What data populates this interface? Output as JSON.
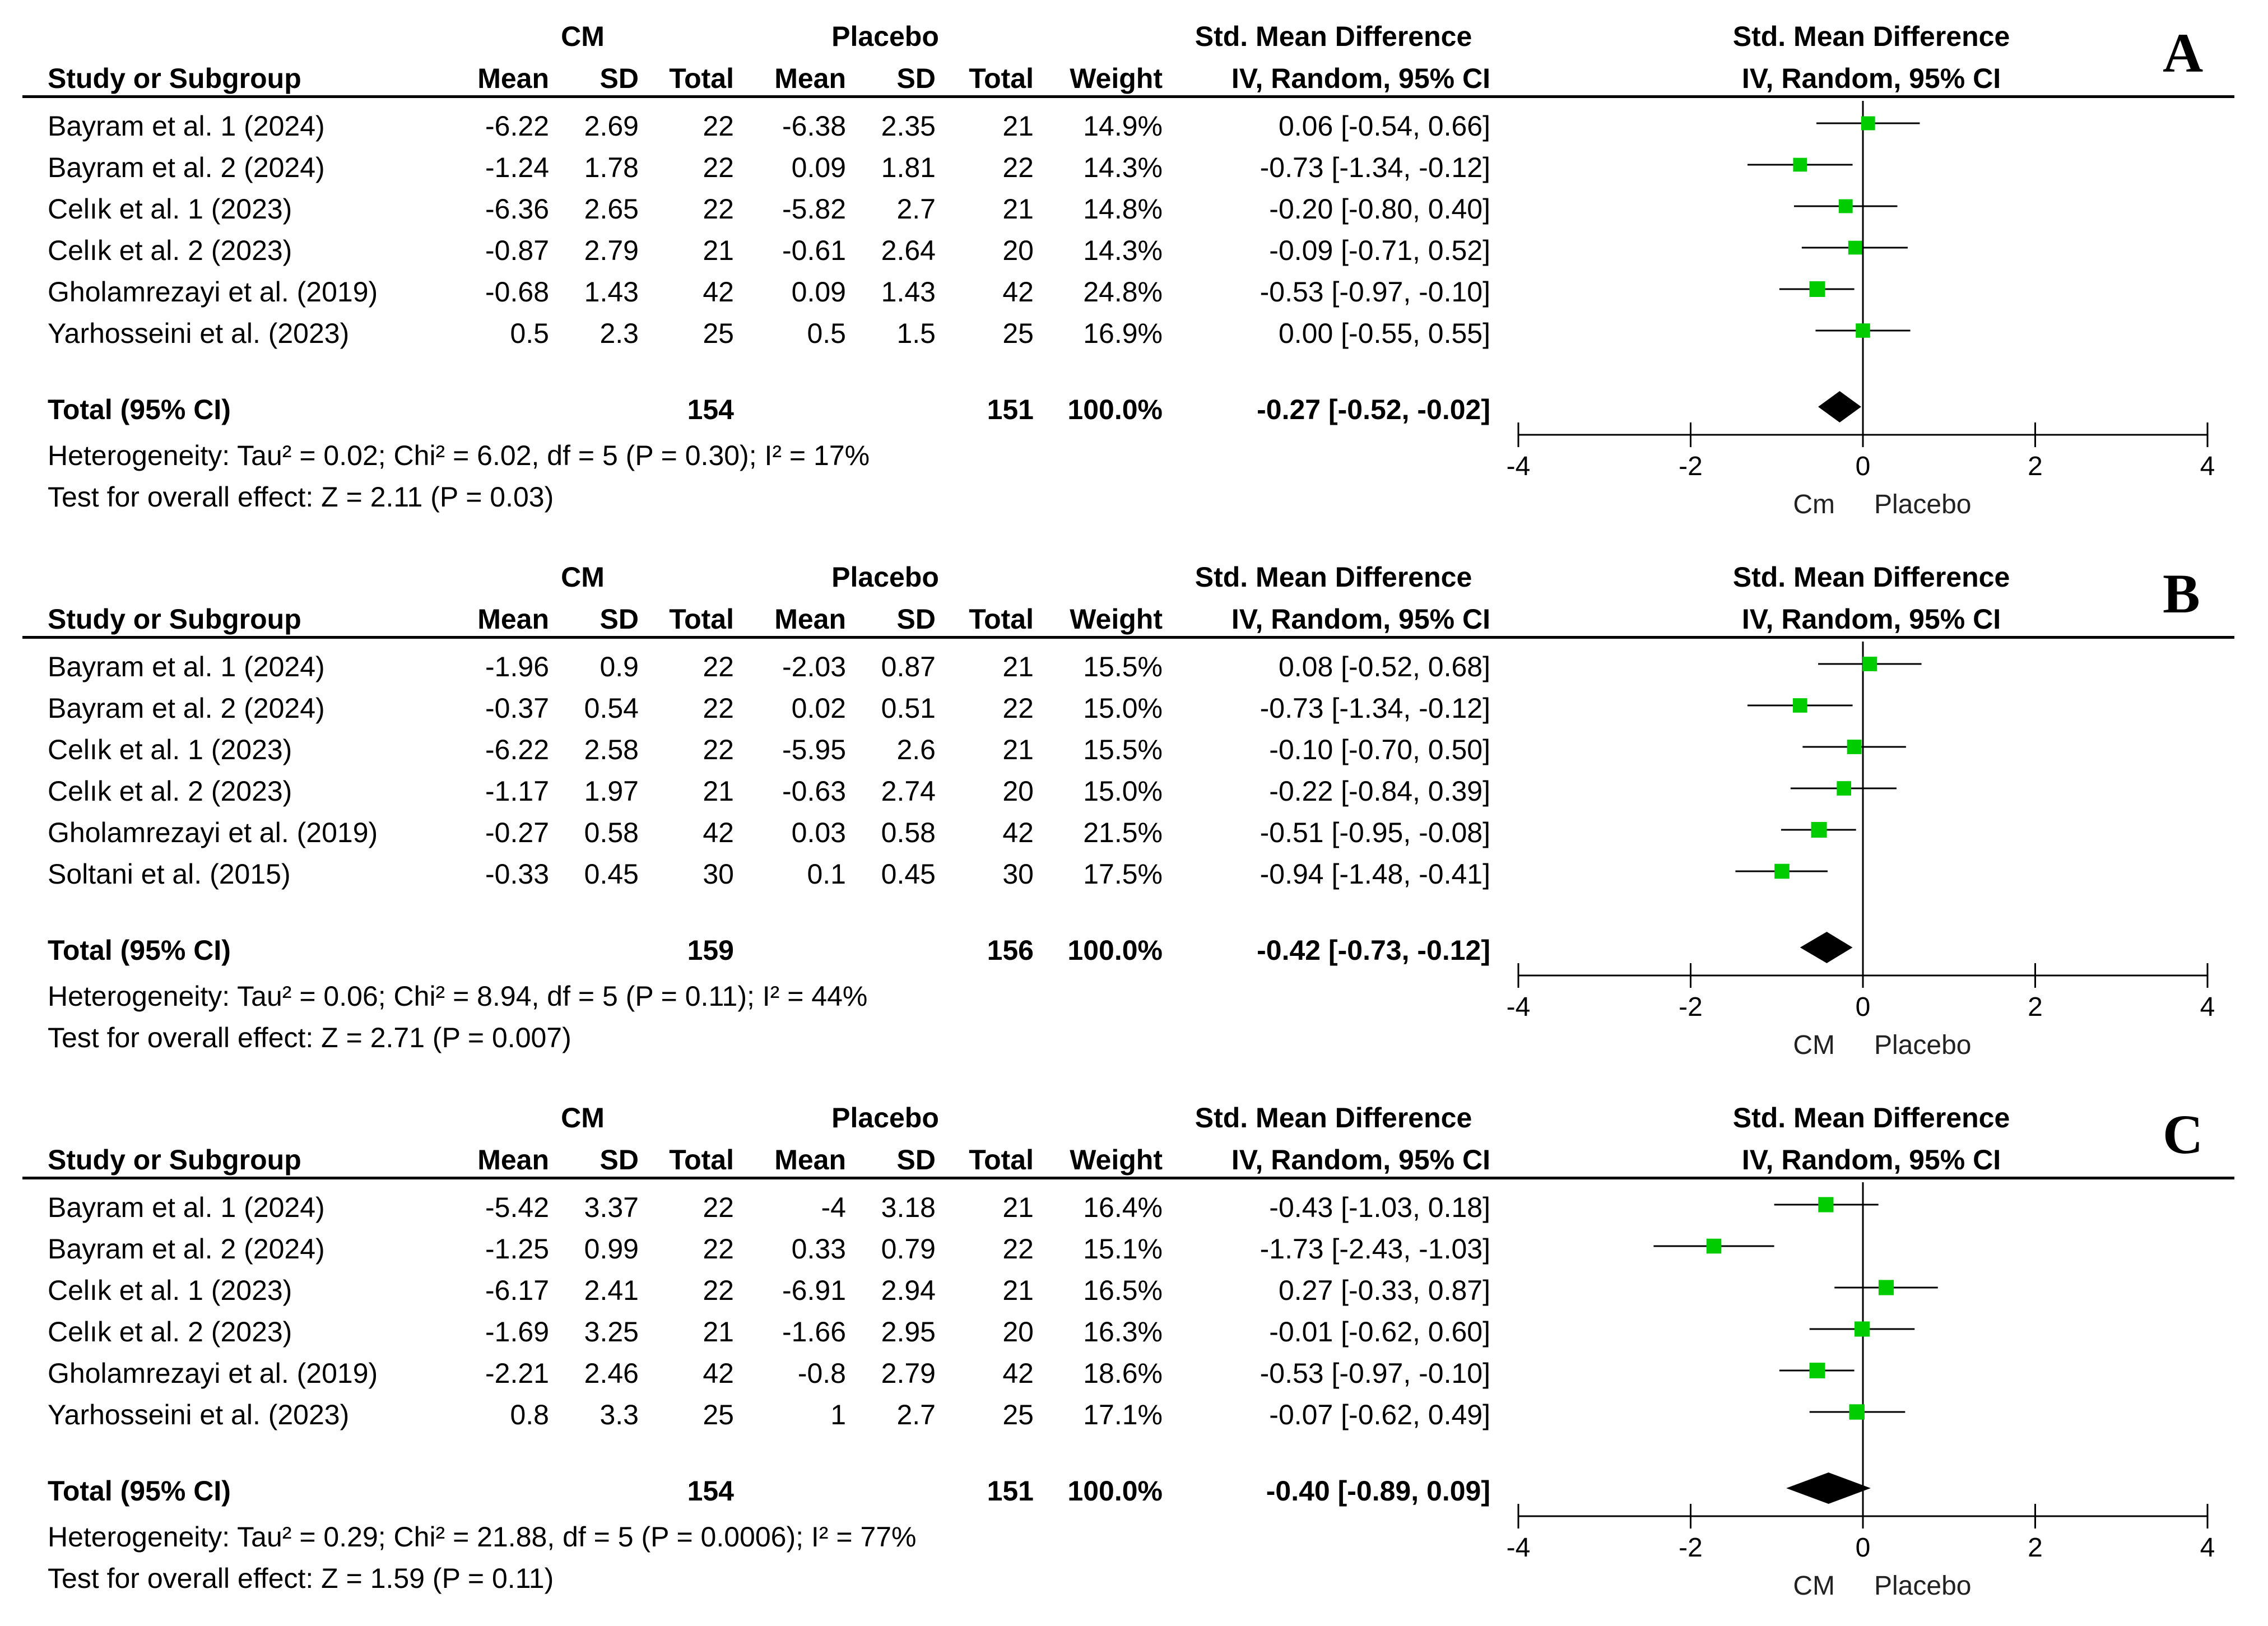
{
  "colors": {
    "marker": "#00cc00",
    "line": "#000000",
    "diamond": "#000000"
  },
  "chart_data": [
    {
      "type": "forest",
      "panel_label": "A",
      "headers": {
        "group1": "CM",
        "group2": "Placebo",
        "smd_top": "Std. Mean Difference",
        "smd_sub": "IV, Random, 95% CI",
        "study": "Study or Subgroup",
        "mean": "Mean",
        "sd": "SD",
        "total": "Total",
        "weight": "Weight",
        "plot_top": "Std. Mean Difference",
        "plot_sub": "IV, Random, 95% CI"
      },
      "studies": [
        {
          "name": "Bayram et al. 1 (2024)",
          "m1": "-6.22",
          "sd1": "2.69",
          "n1": "22",
          "m2": "-6.38",
          "sd2": "2.35",
          "n2": "21",
          "weight": "14.9%",
          "ci_text": "0.06 [-0.54, 0.66]",
          "est": 0.06,
          "lo": -0.54,
          "hi": 0.66,
          "w": 14.9
        },
        {
          "name": "Bayram et al. 2 (2024)",
          "m1": "-1.24",
          "sd1": "1.78",
          "n1": "22",
          "m2": "0.09",
          "sd2": "1.81",
          "n2": "22",
          "weight": "14.3%",
          "ci_text": "-0.73 [-1.34, -0.12]",
          "est": -0.73,
          "lo": -1.34,
          "hi": -0.12,
          "w": 14.3
        },
        {
          "name": "Celık et al. 1 (2023)",
          "m1": "-6.36",
          "sd1": "2.65",
          "n1": "22",
          "m2": "-5.82",
          "sd2": "2.7",
          "n2": "21",
          "weight": "14.8%",
          "ci_text": "-0.20 [-0.80, 0.40]",
          "est": -0.2,
          "lo": -0.8,
          "hi": 0.4,
          "w": 14.8
        },
        {
          "name": "Celık et al. 2 (2023)",
          "m1": "-0.87",
          "sd1": "2.79",
          "n1": "21",
          "m2": "-0.61",
          "sd2": "2.64",
          "n2": "20",
          "weight": "14.3%",
          "ci_text": "-0.09 [-0.71, 0.52]",
          "est": -0.09,
          "lo": -0.71,
          "hi": 0.52,
          "w": 14.3
        },
        {
          "name": "Gholamrezayi et al. (2019)",
          "m1": "-0.68",
          "sd1": "1.43",
          "n1": "42",
          "m2": "0.09",
          "sd2": "1.43",
          "n2": "42",
          "weight": "24.8%",
          "ci_text": "-0.53 [-0.97, -0.10]",
          "est": -0.53,
          "lo": -0.97,
          "hi": -0.1,
          "w": 24.8
        },
        {
          "name": "Yarhosseini et al. (2023)",
          "m1": "0.5",
          "sd1": "2.3",
          "n1": "25",
          "m2": "0.5",
          "sd2": "1.5",
          "n2": "25",
          "weight": "16.9%",
          "ci_text": "0.00 [-0.55, 0.55]",
          "est": 0.0,
          "lo": -0.55,
          "hi": 0.55,
          "w": 16.9
        }
      ],
      "total": {
        "label": "Total (95% CI)",
        "n1": "154",
        "n2": "151",
        "weight": "100.0%",
        "ci_text": "-0.27 [-0.52, -0.02]",
        "est": -0.27,
        "lo": -0.52,
        "hi": -0.02
      },
      "heterogeneity": "Heterogeneity: Tau² = 0.02; Chi² = 6.02, df = 5 (P = 0.30); I² = 17%",
      "overall": "Test for overall effect: Z = 2.11 (P = 0.03)",
      "xlim": [
        -4,
        4
      ],
      "ticks": [
        -4,
        -2,
        0,
        2,
        4
      ],
      "tick_labels": [
        "-4",
        "-2",
        "0",
        "2",
        "4"
      ],
      "favours_left": "Cm",
      "favours_right": "Placebo"
    },
    {
      "type": "forest",
      "panel_label": "B",
      "headers": {
        "group1": "CM",
        "group2": "Placebo",
        "smd_top": "Std. Mean Difference",
        "smd_sub": "IV, Random, 95% CI",
        "study": "Study or Subgroup",
        "mean": "Mean",
        "sd": "SD",
        "total": "Total",
        "weight": "Weight",
        "plot_top": "Std. Mean Difference",
        "plot_sub": "IV, Random, 95% CI"
      },
      "studies": [
        {
          "name": "Bayram et al. 1 (2024)",
          "m1": "-1.96",
          "sd1": "0.9",
          "n1": "22",
          "m2": "-2.03",
          "sd2": "0.87",
          "n2": "21",
          "weight": "15.5%",
          "ci_text": "0.08 [-0.52, 0.68]",
          "est": 0.08,
          "lo": -0.52,
          "hi": 0.68,
          "w": 15.5
        },
        {
          "name": "Bayram et al. 2 (2024)",
          "m1": "-0.37",
          "sd1": "0.54",
          "n1": "22",
          "m2": "0.02",
          "sd2": "0.51",
          "n2": "22",
          "weight": "15.0%",
          "ci_text": "-0.73 [-1.34, -0.12]",
          "est": -0.73,
          "lo": -1.34,
          "hi": -0.12,
          "w": 15.0
        },
        {
          "name": "Celık et al. 1 (2023)",
          "m1": "-6.22",
          "sd1": "2.58",
          "n1": "22",
          "m2": "-5.95",
          "sd2": "2.6",
          "n2": "21",
          "weight": "15.5%",
          "ci_text": "-0.10 [-0.70, 0.50]",
          "est": -0.1,
          "lo": -0.7,
          "hi": 0.5,
          "w": 15.5
        },
        {
          "name": "Celık et al. 2 (2023)",
          "m1": "-1.17",
          "sd1": "1.97",
          "n1": "21",
          "m2": "-0.63",
          "sd2": "2.74",
          "n2": "20",
          "weight": "15.0%",
          "ci_text": "-0.22 [-0.84, 0.39]",
          "est": -0.22,
          "lo": -0.84,
          "hi": 0.39,
          "w": 15.0
        },
        {
          "name": "Gholamrezayi et al. (2019)",
          "m1": "-0.27",
          "sd1": "0.58",
          "n1": "42",
          "m2": "0.03",
          "sd2": "0.58",
          "n2": "42",
          "weight": "21.5%",
          "ci_text": "-0.51 [-0.95, -0.08]",
          "est": -0.51,
          "lo": -0.95,
          "hi": -0.08,
          "w": 21.5
        },
        {
          "name": "Soltani et al. (2015)",
          "m1": "-0.33",
          "sd1": "0.45",
          "n1": "30",
          "m2": "0.1",
          "sd2": "0.45",
          "n2": "30",
          "weight": "17.5%",
          "ci_text": "-0.94 [-1.48, -0.41]",
          "est": -0.94,
          "lo": -1.48,
          "hi": -0.41,
          "w": 17.5
        }
      ],
      "total": {
        "label": "Total (95% CI)",
        "n1": "159",
        "n2": "156",
        "weight": "100.0%",
        "ci_text": "-0.42 [-0.73, -0.12]",
        "est": -0.42,
        "lo": -0.73,
        "hi": -0.12
      },
      "heterogeneity": "Heterogeneity: Tau² = 0.06; Chi² = 8.94, df = 5 (P = 0.11); I² = 44%",
      "overall": "Test for overall effect: Z = 2.71 (P = 0.007)",
      "xlim": [
        -4,
        4
      ],
      "ticks": [
        -4,
        -2,
        0,
        2,
        4
      ],
      "tick_labels": [
        "-4",
        "-2",
        "0",
        "2",
        "4"
      ],
      "favours_left": "CM",
      "favours_right": "Placebo"
    },
    {
      "type": "forest",
      "panel_label": "C",
      "headers": {
        "group1": "CM",
        "group2": "Placebo",
        "smd_top": "Std. Mean Difference",
        "smd_sub": "IV, Random, 95% CI",
        "study": "Study or Subgroup",
        "mean": "Mean",
        "sd": "SD",
        "total": "Total",
        "weight": "Weight",
        "plot_top": "Std. Mean Difference",
        "plot_sub": "IV, Random, 95% CI"
      },
      "studies": [
        {
          "name": "Bayram et al. 1 (2024)",
          "m1": "-5.42",
          "sd1": "3.37",
          "n1": "22",
          "m2": "-4",
          "sd2": "3.18",
          "n2": "21",
          "weight": "16.4%",
          "ci_text": "-0.43 [-1.03, 0.18]",
          "est": -0.43,
          "lo": -1.03,
          "hi": 0.18,
          "w": 16.4
        },
        {
          "name": "Bayram et al. 2 (2024)",
          "m1": "-1.25",
          "sd1": "0.99",
          "n1": "22",
          "m2": "0.33",
          "sd2": "0.79",
          "n2": "22",
          "weight": "15.1%",
          "ci_text": "-1.73 [-2.43, -1.03]",
          "est": -1.73,
          "lo": -2.43,
          "hi": -1.03,
          "w": 15.1
        },
        {
          "name": "Celık et al. 1 (2023)",
          "m1": "-6.17",
          "sd1": "2.41",
          "n1": "22",
          "m2": "-6.91",
          "sd2": "2.94",
          "n2": "21",
          "weight": "16.5%",
          "ci_text": "0.27 [-0.33, 0.87]",
          "est": 0.27,
          "lo": -0.33,
          "hi": 0.87,
          "w": 16.5
        },
        {
          "name": "Celık et al. 2 (2023)",
          "m1": "-1.69",
          "sd1": "3.25",
          "n1": "21",
          "m2": "-1.66",
          "sd2": "2.95",
          "n2": "20",
          "weight": "16.3%",
          "ci_text": "-0.01 [-0.62, 0.60]",
          "est": -0.01,
          "lo": -0.62,
          "hi": 0.6,
          "w": 16.3
        },
        {
          "name": "Gholamrezayi et al. (2019)",
          "m1": "-2.21",
          "sd1": "2.46",
          "n1": "42",
          "m2": "-0.8",
          "sd2": "2.79",
          "n2": "42",
          "weight": "18.6%",
          "ci_text": "-0.53 [-0.97, -0.10]",
          "est": -0.53,
          "lo": -0.97,
          "hi": -0.1,
          "w": 18.6
        },
        {
          "name": "Yarhosseini et al. (2023)",
          "m1": "0.8",
          "sd1": "3.3",
          "n1": "25",
          "m2": "1",
          "sd2": "2.7",
          "n2": "25",
          "weight": "17.1%",
          "ci_text": "-0.07 [-0.62, 0.49]",
          "est": -0.07,
          "lo": -0.62,
          "hi": 0.49,
          "w": 17.1
        }
      ],
      "total": {
        "label": "Total (95% CI)",
        "n1": "154",
        "n2": "151",
        "weight": "100.0%",
        "ci_text": "-0.40 [-0.89, 0.09]",
        "est": -0.4,
        "lo": -0.89,
        "hi": 0.09
      },
      "heterogeneity": "Heterogeneity: Tau² = 0.29; Chi² = 21.88, df = 5 (P = 0.0006); I² = 77%",
      "overall": "Test for overall effect: Z = 1.59 (P = 0.11)",
      "xlim": [
        -4,
        4
      ],
      "ticks": [
        -4,
        -2,
        0,
        2,
        4
      ],
      "tick_labels": [
        "-4",
        "-2",
        "0",
        "2",
        "4"
      ],
      "favours_left": "CM",
      "favours_right": "Placebo"
    }
  ]
}
